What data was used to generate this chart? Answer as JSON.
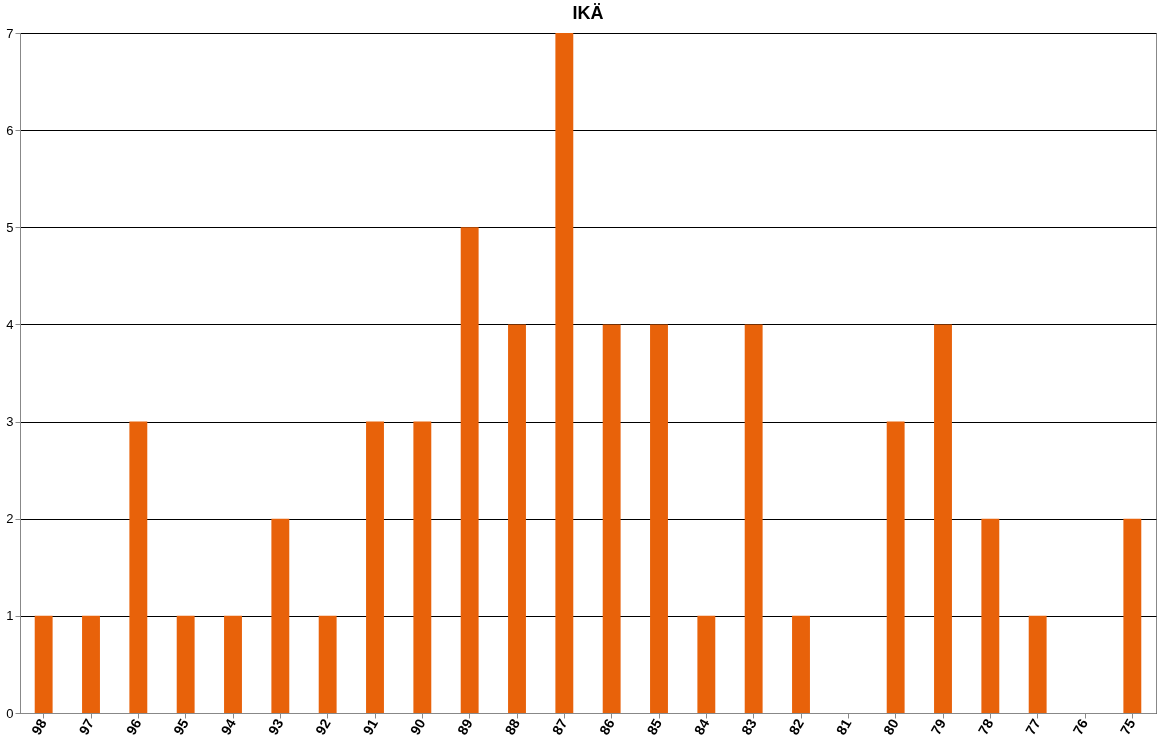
{
  "chart_data": {
    "type": "bar",
    "title": "IKÄ",
    "categories": [
      "98",
      "97",
      "96",
      "95",
      "94",
      "93",
      "92",
      "91",
      "90",
      "89",
      "88",
      "87",
      "86",
      "85",
      "84",
      "83",
      "82",
      "81",
      "80",
      "79",
      "78",
      "77",
      "76",
      "75"
    ],
    "values": [
      1,
      1,
      3,
      1,
      1,
      2,
      1,
      3,
      3,
      5,
      4,
      7,
      4,
      4,
      1,
      4,
      1,
      0,
      3,
      4,
      2,
      1,
      0,
      2
    ],
    "color": "#e8620a",
    "ylim": [
      0,
      7
    ],
    "yticks": [
      0,
      1,
      2,
      3,
      4,
      5,
      6,
      7
    ],
    "grid": "y"
  }
}
